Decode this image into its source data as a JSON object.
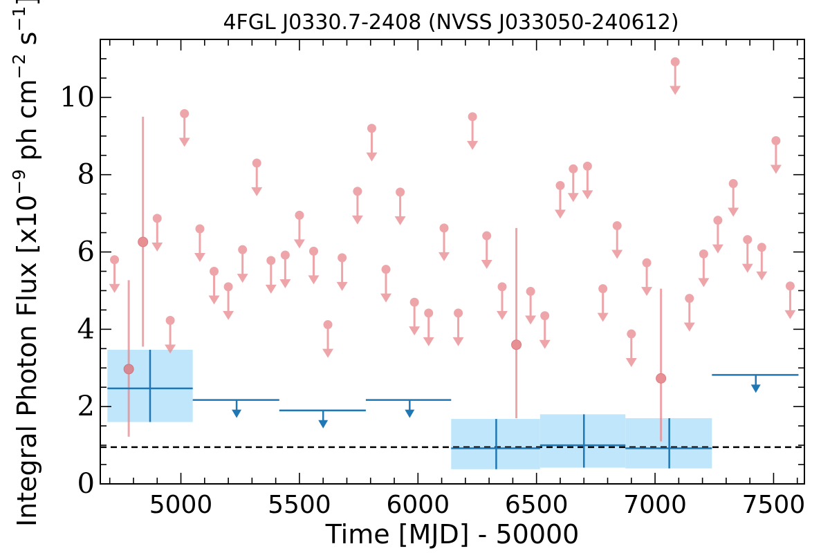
{
  "chart_data": {
    "type": "scatter",
    "title": "4FGL J0330.7-2408 (NVSS J033050-240612)",
    "xlabel": "Time [MJD] - 50000",
    "ylabel": "Integral Photon Flux [x10",
    "ylabel_exp1": "−9",
    "ylabel_mid": " ph cm",
    "ylabel_exp2": "−2",
    "ylabel_mid2": " s",
    "ylabel_exp3": "−1",
    "ylabel_end": "]",
    "xlim": [
      4660,
      7630
    ],
    "ylim": [
      0,
      11.5
    ],
    "xticks": [
      5000,
      5500,
      6000,
      6500,
      7000,
      7500
    ],
    "xtick_labels": [
      "5000",
      "5500",
      "6000",
      "6500",
      "7000",
      "7500"
    ],
    "yticks": [
      0,
      2,
      4,
      6,
      8,
      10
    ],
    "ytick_labels": [
      "0",
      "2",
      "4",
      "6",
      "8",
      "10"
    ],
    "baseline": 0.95,
    "colors": {
      "fine": "#e8888d",
      "coarse": "#1f77b4",
      "band": "#bfe6fb",
      "baseline": "#000000"
    },
    "fine_upper_limits": [
      [
        4720,
        5.8
      ],
      [
        4900,
        6.87
      ],
      [
        4955,
        4.23
      ],
      [
        5015,
        9.58
      ],
      [
        5080,
        6.6
      ],
      [
        5140,
        5.5
      ],
      [
        5200,
        5.1
      ],
      [
        5260,
        6.06
      ],
      [
        5320,
        8.3
      ],
      [
        5380,
        5.78
      ],
      [
        5440,
        5.92
      ],
      [
        5500,
        6.95
      ],
      [
        5560,
        6.02
      ],
      [
        5620,
        4.12
      ],
      [
        5680,
        5.85
      ],
      [
        5745,
        7.57
      ],
      [
        5805,
        9.2
      ],
      [
        5865,
        5.55
      ],
      [
        5925,
        7.55
      ],
      [
        5985,
        4.7
      ],
      [
        6045,
        4.42
      ],
      [
        6110,
        6.62
      ],
      [
        6170,
        4.42
      ],
      [
        6230,
        9.5
      ],
      [
        6290,
        6.42
      ],
      [
        6355,
        5.1
      ],
      [
        6475,
        4.98
      ],
      [
        6535,
        4.35
      ],
      [
        6600,
        7.72
      ],
      [
        6655,
        8.15
      ],
      [
        6715,
        8.22
      ],
      [
        6780,
        5.05
      ],
      [
        6840,
        6.68
      ],
      [
        6900,
        3.88
      ],
      [
        6965,
        5.72
      ],
      [
        7085,
        10.92
      ],
      [
        7145,
        4.8
      ],
      [
        7205,
        5.95
      ],
      [
        7265,
        6.82
      ],
      [
        7330,
        7.77
      ],
      [
        7390,
        6.32
      ],
      [
        7450,
        6.12
      ],
      [
        7510,
        8.88
      ],
      [
        7570,
        5.12
      ]
    ],
    "fine_detections": [
      {
        "x": 4780,
        "y": 2.97,
        "ylo": 1.22,
        "yhi": 5.27
      },
      {
        "x": 4840,
        "y": 6.26,
        "ylo": 3.55,
        "yhi": 9.5
      },
      {
        "x": 6415,
        "y": 3.6,
        "ylo": 1.7,
        "yhi": 6.62
      },
      {
        "x": 7025,
        "y": 2.73,
        "ylo": 1.1,
        "yhi": 5.05
      }
    ],
    "coarse_detections": [
      {
        "x": 4870,
        "xlo": 4690,
        "xhi": 5050,
        "y": 2.47,
        "ylo": 1.6,
        "yhi": 3.47
      },
      {
        "x": 6330,
        "xlo": 6140,
        "xhi": 6515,
        "y": 0.92,
        "ylo": 0.38,
        "yhi": 1.68
      },
      {
        "x": 6700,
        "xlo": 6515,
        "xhi": 6875,
        "y": 1.0,
        "ylo": 0.42,
        "yhi": 1.8
      },
      {
        "x": 7060,
        "xlo": 6875,
        "xhi": 7240,
        "y": 0.92,
        "ylo": 0.4,
        "yhi": 1.7
      }
    ],
    "coarse_upper_limits": [
      {
        "x": 5235,
        "xlo": 5050,
        "xhi": 5415,
        "y": 2.17
      },
      {
        "x": 5600,
        "xlo": 5415,
        "xhi": 5780,
        "y": 1.9
      },
      {
        "x": 5965,
        "xlo": 5780,
        "xhi": 6140,
        "y": 2.17
      },
      {
        "x": 7425,
        "xlo": 7240,
        "xhi": 7605,
        "y": 2.82
      }
    ],
    "grid": false,
    "legend": "none"
  }
}
